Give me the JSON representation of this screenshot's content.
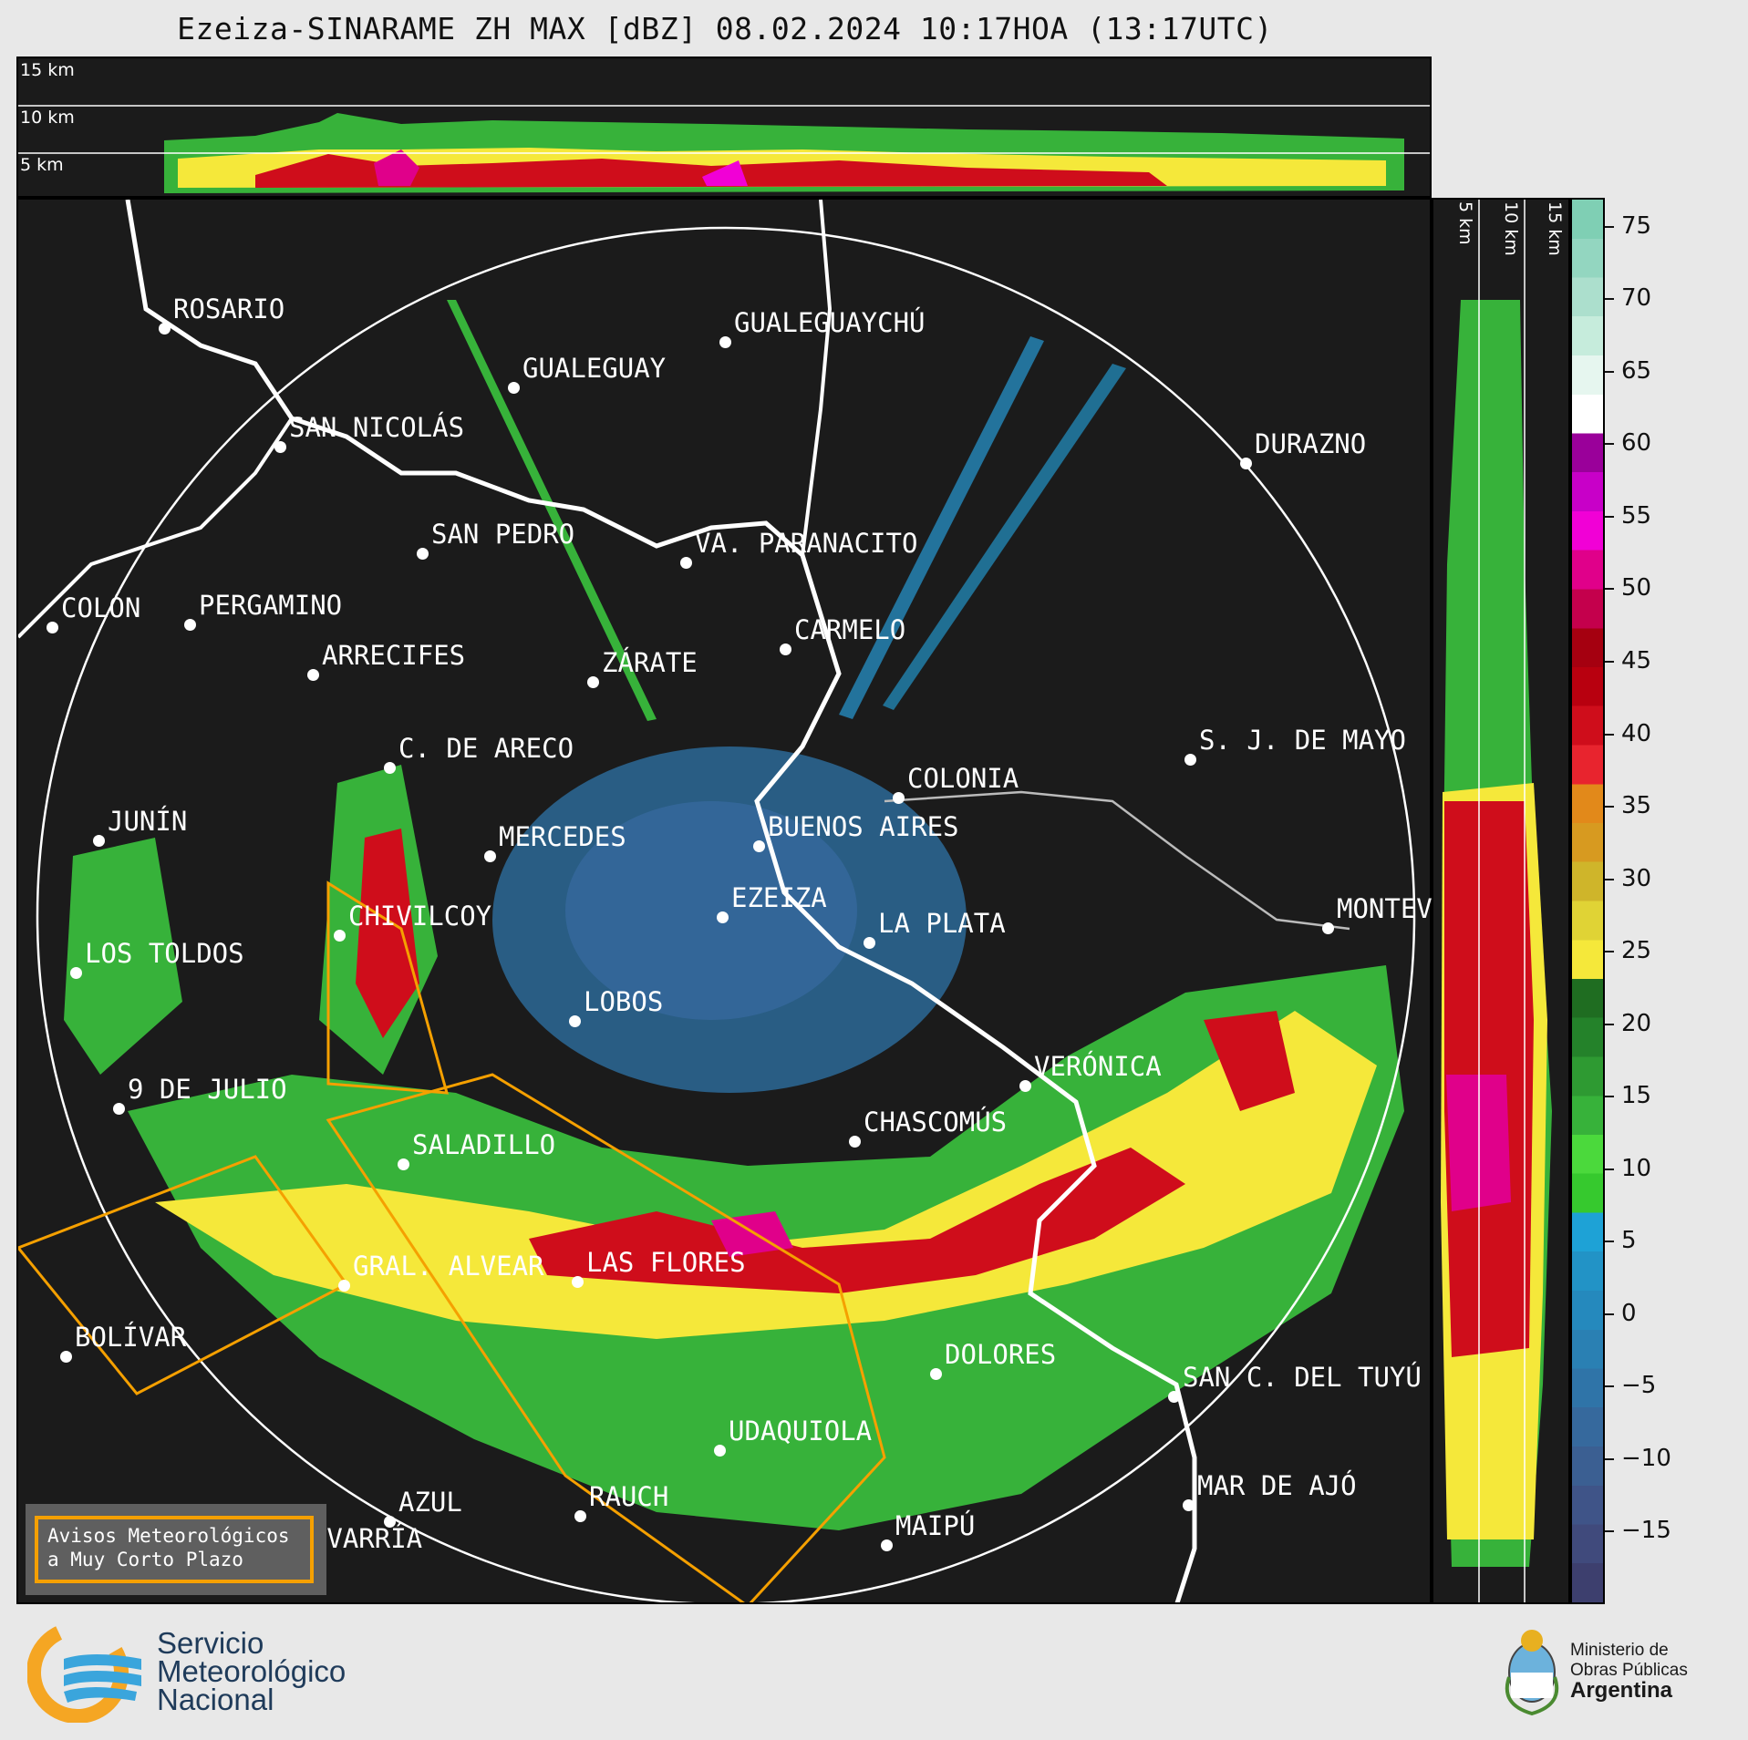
{
  "title": "Ezeiza-SINARAME ZH MAX [dBZ] 08.02.2024 10:17HOA (13:17UTC)",
  "top_panel": {
    "altitudes": [
      "15 km",
      "10 km",
      "5 km"
    ]
  },
  "right_panel": {
    "altitudes": [
      "5 km",
      "10 km",
      "15 km"
    ]
  },
  "colorbar": {
    "unit": "dBZ",
    "ticks": [
      "75",
      "70",
      "65",
      "60",
      "55",
      "50",
      "45",
      "40",
      "35",
      "30",
      "25",
      "20",
      "15",
      "10",
      "5",
      "0",
      "−5",
      "−10",
      "−15"
    ],
    "range": [
      -20,
      77
    ],
    "colors": [
      "#3d3f6e",
      "#404a7c",
      "#3f5488",
      "#3b5f92",
      "#36699d",
      "#2f74a8",
      "#2a80b3",
      "#2589bd",
      "#2293c6",
      "#1ea2d6",
      "#36c92e",
      "#4bd93c",
      "#37b23a",
      "#2e9a32",
      "#24822a",
      "#1f6d21",
      "#f5e83a",
      "#e0d335",
      "#cfb52a",
      "#d79a20",
      "#e2891a",
      "#e8242e",
      "#cf0d1b",
      "#b8000f",
      "#a50010",
      "#c4004c",
      "#e0008a",
      "#f100d6",
      "#c800c8",
      "#9a009a",
      "#ffffff",
      "#e6f6ef",
      "#c6ecdc",
      "#acdfcd",
      "#93d6c0",
      "#7fcfb4"
    ]
  },
  "cities": [
    {
      "name": "ROSARIO"
    },
    {
      "name": "GUALEGUAYCHÚ"
    },
    {
      "name": "GUALEGUAY"
    },
    {
      "name": "SAN NICOLÁS"
    },
    {
      "name": "DURAZNO"
    },
    {
      "name": "SAN PEDRO"
    },
    {
      "name": "VA. PARANACITO"
    },
    {
      "name": "COLÓN"
    },
    {
      "name": "PERGAMINO"
    },
    {
      "name": "CARMELO"
    },
    {
      "name": "ARRECIFES"
    },
    {
      "name": "ZÁRATE"
    },
    {
      "name": "S. J. DE MAYO"
    },
    {
      "name": "C. DE ARECO"
    },
    {
      "name": "COLONIA"
    },
    {
      "name": "JUNÍN"
    },
    {
      "name": "BUENOS AIRES"
    },
    {
      "name": "MERCEDES"
    },
    {
      "name": "EZEIZA"
    },
    {
      "name": "MONTEV"
    },
    {
      "name": "CHIVILCOY"
    },
    {
      "name": "LA PLATA"
    },
    {
      "name": "LOS TOLDOS"
    },
    {
      "name": "LOBOS"
    },
    {
      "name": "VERÓNICA"
    },
    {
      "name": "9 DE JULIO"
    },
    {
      "name": "CHASCOMÚS"
    },
    {
      "name": "SALADILLO"
    },
    {
      "name": "GRAL. ALVEAR"
    },
    {
      "name": "LAS FLORES"
    },
    {
      "name": "BOLÍVAR"
    },
    {
      "name": "DOLORES"
    },
    {
      "name": "SAN C. DEL TUYÚ"
    },
    {
      "name": "UDAQUIOLA"
    },
    {
      "name": "MAR DE AJÓ"
    },
    {
      "name": "AZUL"
    },
    {
      "name": "RAUCH"
    },
    {
      "name": "OLAVARRÍA"
    },
    {
      "name": "MAIPÚ"
    }
  ],
  "legend": {
    "line1": "Avisos Meteorológicos",
    "line2": "a Muy Corto Plazo"
  },
  "footer": {
    "org_line1": "Servicio",
    "org_line2": "Meteorológico",
    "org_line3": "Nacional",
    "ministry_line1": "Ministerio de",
    "ministry_line2": "Obras Públicas",
    "ministry_line3": "Argentina"
  }
}
